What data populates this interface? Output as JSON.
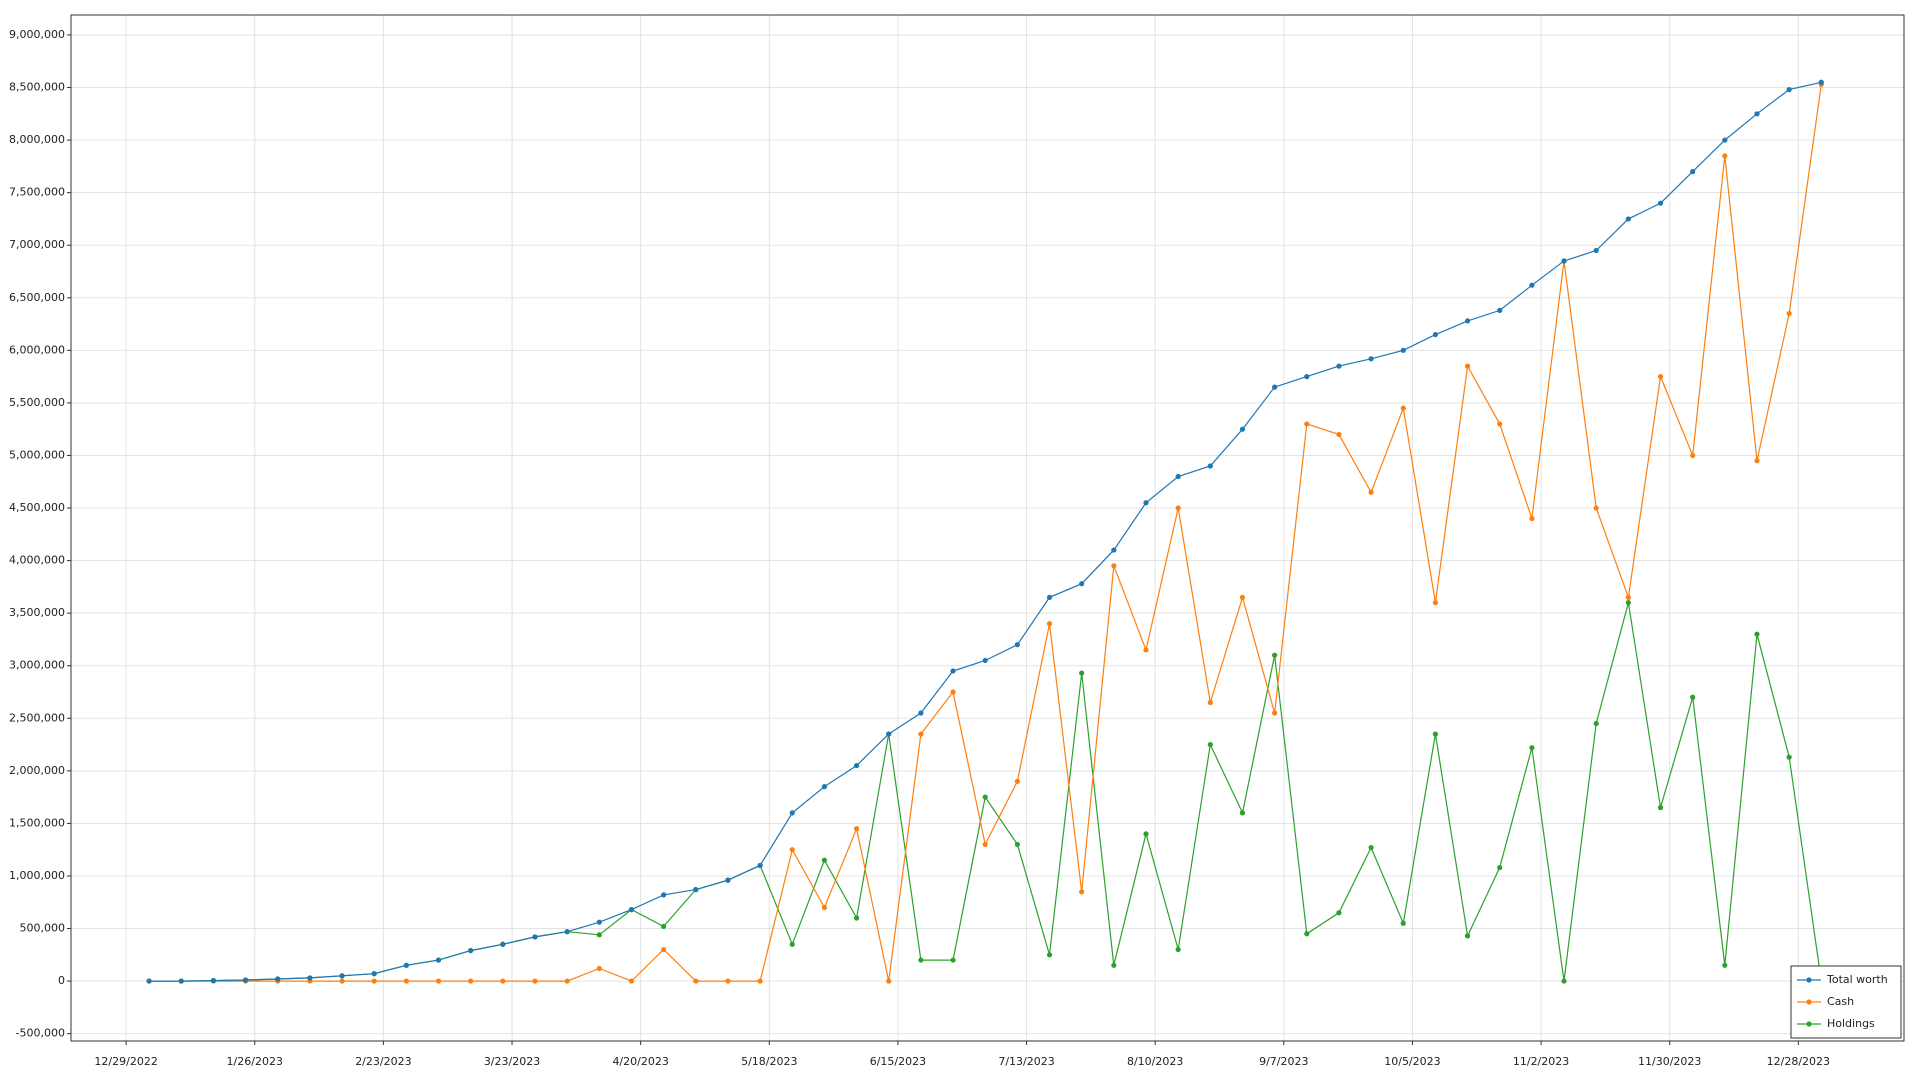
{
  "chart_data": {
    "type": "line",
    "x": [
      "1/3/2023",
      "1/10/2023",
      "1/17/2023",
      "1/24/2023",
      "1/31/2023",
      "2/7/2023",
      "2/14/2023",
      "2/21/2023",
      "2/28/2023",
      "3/7/2023",
      "3/14/2023",
      "3/21/2023",
      "3/28/2023",
      "4/4/2023",
      "4/11/2023",
      "4/18/2023",
      "4/25/2023",
      "5/2/2023",
      "5/9/2023",
      "5/16/2023",
      "5/23/2023",
      "5/30/2023",
      "6/6/2023",
      "6/13/2023",
      "6/20/2023",
      "6/27/2023",
      "7/4/2023",
      "7/11/2023",
      "7/18/2023",
      "7/25/2023",
      "8/1/2023",
      "8/8/2023",
      "8/15/2023",
      "8/22/2023",
      "8/29/2023",
      "9/5/2023",
      "9/12/2023",
      "9/19/2023",
      "9/26/2023",
      "10/3/2023",
      "10/10/2023",
      "10/17/2023",
      "10/24/2023",
      "10/31/2023",
      "11/7/2023",
      "11/14/2023",
      "11/21/2023",
      "11/28/2023",
      "12/5/2023",
      "12/12/2023",
      "12/19/2023",
      "12/26/2023",
      "1/2/2024"
    ],
    "series": [
      {
        "name": "Total worth",
        "color": "#1f77b4",
        "values": [
          0,
          0,
          5000,
          10000,
          20000,
          30000,
          50000,
          70000,
          150000,
          200000,
          290000,
          350000,
          420000,
          470000,
          560000,
          680000,
          820000,
          870000,
          960000,
          1100000,
          1600000,
          1850000,
          2050000,
          2350000,
          2550000,
          2950000,
          3050000,
          3200000,
          3650000,
          3780000,
          4100000,
          4550000,
          4800000,
          4900000,
          5250000,
          5650000,
          5750000,
          5850000,
          5920000,
          6000000,
          6150000,
          6280000,
          6380000,
          6620000,
          6850000,
          6950000,
          7250000,
          7400000,
          7700000,
          8000000,
          8250000,
          8480000,
          8550000
        ]
      },
      {
        "name": "Cash",
        "color": "#ff7f0e",
        "values": [
          0,
          0,
          0,
          0,
          0,
          0,
          0,
          0,
          0,
          0,
          0,
          0,
          0,
          0,
          120000,
          0,
          300000,
          0,
          0,
          0,
          1250000,
          700000,
          1450000,
          0,
          2350000,
          2750000,
          1300000,
          1900000,
          3400000,
          850000,
          3950000,
          3150000,
          4500000,
          2650000,
          3650000,
          2550000,
          5300000,
          5200000,
          4650000,
          5450000,
          3600000,
          5850000,
          5300000,
          4400000,
          6850000,
          4500000,
          3650000,
          5750000,
          5000000,
          7850000,
          4950000,
          6350000,
          8530000
        ]
      },
      {
        "name": "Holdings",
        "color": "#2ca02c",
        "values": [
          0,
          0,
          5000,
          10000,
          20000,
          30000,
          50000,
          70000,
          150000,
          200000,
          290000,
          350000,
          420000,
          470000,
          440000,
          680000,
          520000,
          870000,
          960000,
          1100000,
          350000,
          1150000,
          600000,
          2350000,
          200000,
          200000,
          1750000,
          1300000,
          250000,
          2930000,
          150000,
          1400000,
          300000,
          2250000,
          1600000,
          3100000,
          450000,
          650000,
          1270000,
          550000,
          2350000,
          430000,
          1080000,
          2220000,
          0,
          2450000,
          3600000,
          1650000,
          2700000,
          150000,
          3300000,
          2130000,
          0
        ]
      }
    ],
    "xlim": [
      "12/17/2022",
      "1/20/2024"
    ],
    "xticks": [
      "12/29/2022",
      "1/26/2023",
      "2/23/2023",
      "3/23/2023",
      "4/20/2023",
      "5/18/2023",
      "6/15/2023",
      "7/13/2023",
      "8/10/2023",
      "9/7/2023",
      "10/5/2023",
      "11/2/2023",
      "11/30/2023",
      "12/28/2023"
    ],
    "ylim": [
      -570000,
      9190000
    ],
    "yticks": [
      {
        "value": -500000,
        "label": "-500,000"
      },
      0,
      {
        "value": 500000,
        "label": "500,000"
      },
      {
        "value": 1000000,
        "label": "1,000,000"
      },
      {
        "value": 1500000,
        "label": "1,500,000"
      },
      {
        "value": 2000000,
        "label": "2,000,000"
      },
      {
        "value": 2500000,
        "label": "2,500,000"
      },
      {
        "value": 3000000,
        "label": "3,000,000"
      },
      {
        "value": 3500000,
        "label": "3,500,000"
      },
      {
        "value": 4000000,
        "label": "4,000,000"
      },
      {
        "value": 4500000,
        "label": "4,500,000"
      },
      {
        "value": 5000000,
        "label": "5,000,000"
      },
      {
        "value": 5500000,
        "label": "5,500,000"
      },
      {
        "value": 6000000,
        "label": "6,000,000"
      },
      {
        "value": 6500000,
        "label": "6,500,000"
      },
      {
        "value": 7000000,
        "label": "7,000,000"
      },
      {
        "value": 7500000,
        "label": "7,500,000"
      },
      {
        "value": 8000000,
        "label": "8,000,000"
      },
      {
        "value": 8500000,
        "label": "8,500,000"
      },
      {
        "value": 9000000,
        "label": "9,000,000"
      }
    ],
    "grid": true,
    "legend": "lower right"
  }
}
